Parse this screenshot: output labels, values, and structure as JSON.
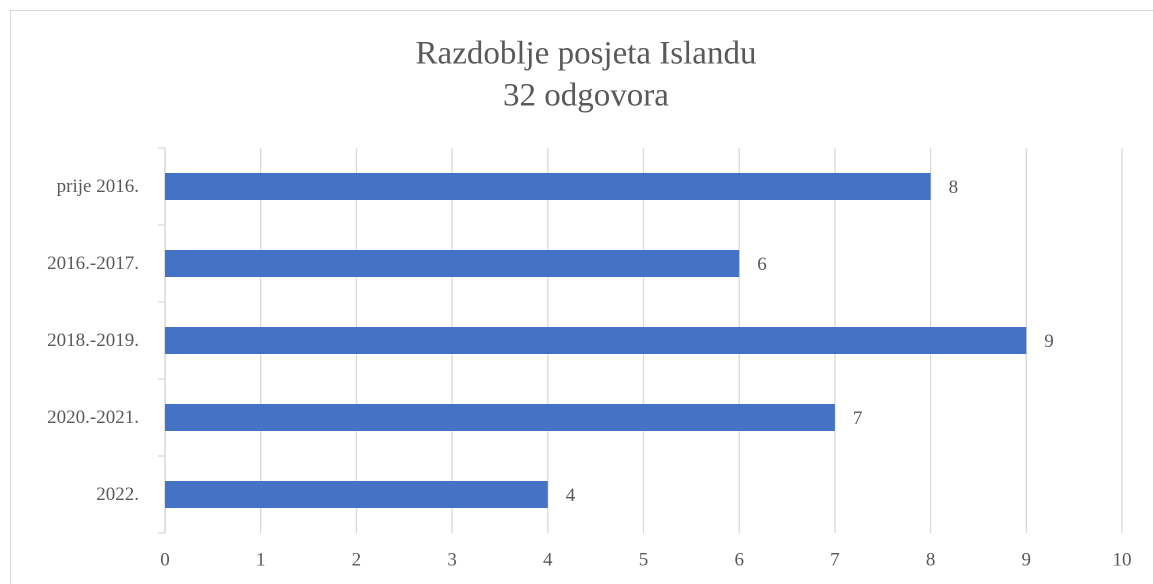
{
  "chart_data": {
    "type": "bar",
    "orientation": "horizontal",
    "title": "Razdoblje posjeta Islandu",
    "subtitle": "32 odgovora",
    "categories": [
      "prije 2016.",
      "2016.-2017.",
      "2018.-2019.",
      "2020.-2021.",
      "2022."
    ],
    "values": [
      8,
      6,
      9,
      7,
      4
    ],
    "color": "#4472c4",
    "xlim": [
      0,
      10
    ],
    "xticks": [
      0,
      1,
      2,
      3,
      4,
      5,
      6,
      7,
      8,
      9,
      10
    ],
    "grid": true
  }
}
